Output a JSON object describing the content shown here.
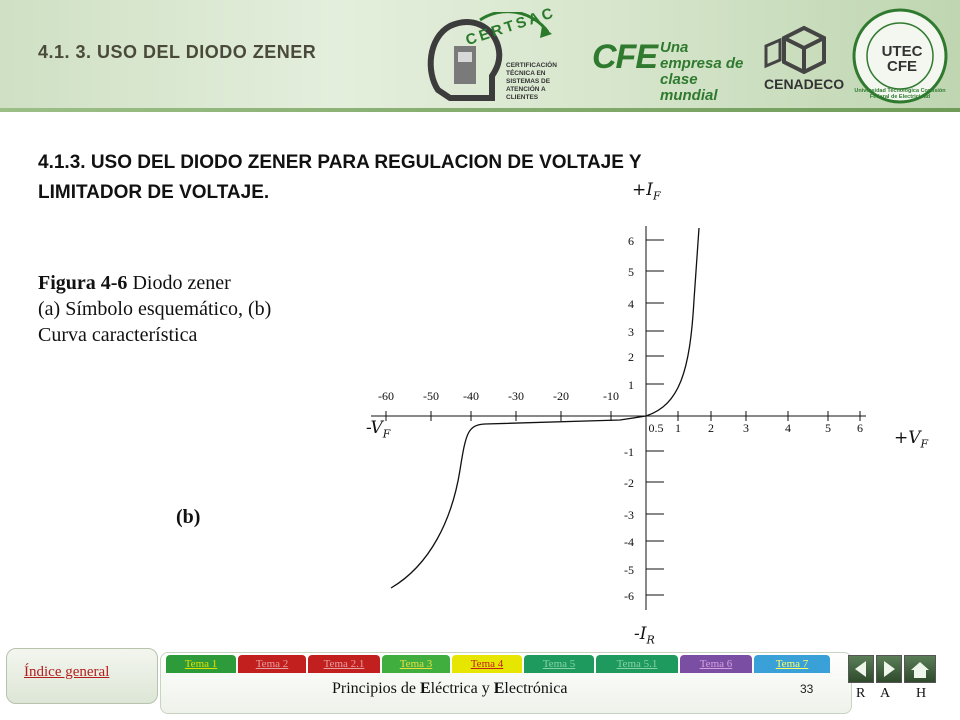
{
  "header": {
    "section_tag": "4.1. 3. USO DEL DIODO ZENER",
    "logos": [
      {
        "name": "certsac",
        "text": "CERTSAC",
        "subtext": "CERTIFICACIÓN TÉCNICA EN SISTEMAS DE ATENCIÓN A CLIENTES"
      },
      {
        "name": "cfe",
        "text": "CFE",
        "subtext": "Una empresa de clase mundial"
      },
      {
        "name": "cenadeco",
        "text": "CENADECO"
      },
      {
        "name": "utec",
        "text": "UTEC CFE",
        "subtext": "Universidad Tecnológica Comisión Federal de Electricidad"
      }
    ]
  },
  "main": {
    "title_line1": "4.1.3. USO DEL DIODO ZENER PARA REGULACION DE VOLTAJE Y",
    "title_line2": "LIMITADOR DE VOLTAJE.",
    "caption_bold": "Figura 4-6",
    "caption_line1": " Diodo zener",
    "caption_line2": " (a) Símbolo esquemático, (b)",
    "caption_line3": "Curva característica",
    "sublabel": "(b)"
  },
  "chart_data": {
    "type": "line",
    "axis_labels": {
      "top": "+I",
      "top_sub": "F",
      "bottom": "-I",
      "bottom_sub": "R",
      "right": "+V",
      "right_sub": "F",
      "left": "-V",
      "left_sub": "F"
    },
    "x_ticks_negative": [
      "-60",
      "-50",
      "-40",
      "-30",
      "-20",
      "-10"
    ],
    "x_ticks_positive": [
      "0.5",
      "1",
      "2",
      "3",
      "4",
      "5",
      "6"
    ],
    "y_ticks_positive": [
      "6",
      "5",
      "4",
      "3",
      "2",
      "1"
    ],
    "y_ticks_negative": [
      "-1",
      "-2",
      "-3",
      "-4",
      "-5",
      "-6"
    ],
    "series": [
      {
        "values_description": "",
        "color": "#111111"
      }
    ]
  },
  "footer": {
    "index_label": "Índice general",
    "tabs": [
      {
        "label": "Tema 1",
        "color": "#2e9b3a",
        "text": "#e0e000"
      },
      {
        "label": "Tema 2",
        "color": "#c21f1f",
        "text": "#e6a0a0"
      },
      {
        "label": "Tema 2.1",
        "color": "#c21f1f",
        "text": "#e6a0a0"
      },
      {
        "label": "Tema 3",
        "color": "#3fae3f",
        "text": "#e8e040"
      },
      {
        "label": "Tema 4",
        "color": "#e6e600",
        "text": "#c21f1f"
      },
      {
        "label": "Tema 5",
        "color": "#1f9a5e",
        "text": "#86d2a8"
      },
      {
        "label": "Tema 5.1",
        "color": "#1f9a5e",
        "text": "#86d2a8"
      },
      {
        "label": "Tema 6",
        "color": "#7a4fa3",
        "text": "#d7a0e0"
      },
      {
        "label": "Tema 7",
        "color": "#3aa0d8",
        "text": "#ffff66"
      }
    ],
    "title_parts": [
      "P",
      "rincipios de ",
      "E",
      "léctrica y ",
      "E",
      "lectrónica"
    ],
    "page_number": "33",
    "nav_letters": [
      "R",
      "A",
      "H"
    ]
  }
}
